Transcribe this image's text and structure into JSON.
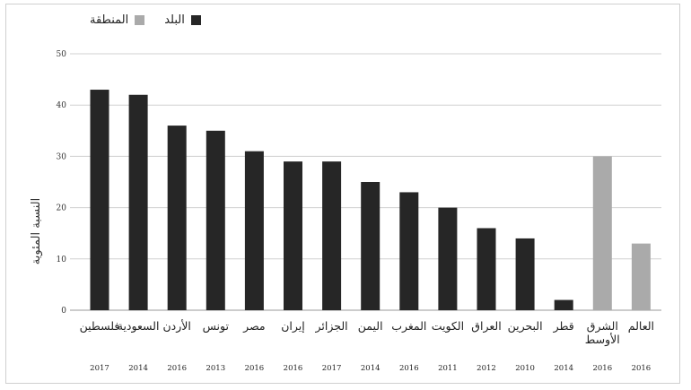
{
  "chart_data": {
    "type": "bar",
    "title": "",
    "ylabel": "النسبة المئوية",
    "xlabel": "",
    "ylim": [
      0,
      50
    ],
    "yticks": [
      0,
      10,
      20,
      30,
      40,
      50
    ],
    "grid": true,
    "legend_position": "top-left",
    "legend": [
      {
        "label": "البلد",
        "color": "#262626"
      },
      {
        "label": "المنطقة",
        "color": "#aaaaaa"
      }
    ],
    "categories": [
      {
        "name": "فلسطين",
        "year": "2017",
        "value": 43,
        "group": "البلد"
      },
      {
        "name": "السعودية",
        "year": "2014",
        "value": 42,
        "group": "البلد"
      },
      {
        "name": "الأردن",
        "year": "2016",
        "value": 36,
        "group": "البلد"
      },
      {
        "name": "تونس",
        "year": "2013",
        "value": 35,
        "group": "البلد"
      },
      {
        "name": "مصر",
        "year": "2016",
        "value": 31,
        "group": "البلد"
      },
      {
        "name": "إيران",
        "year": "2016",
        "value": 29,
        "group": "البلد"
      },
      {
        "name": "الجزائر",
        "year": "2017",
        "value": 29,
        "group": "البلد"
      },
      {
        "name": "اليمن",
        "year": "2014",
        "value": 25,
        "group": "البلد"
      },
      {
        "name": "المغرب",
        "year": "2016",
        "value": 23,
        "group": "البلد"
      },
      {
        "name": "الكويت",
        "year": "2011",
        "value": 20,
        "group": "البلد"
      },
      {
        "name": "العراق",
        "year": "2012",
        "value": 16,
        "group": "البلد"
      },
      {
        "name": "البحرين",
        "year": "2010",
        "value": 14,
        "group": "البلد"
      },
      {
        "name": "قطر",
        "year": "2014",
        "value": 2,
        "group": "البلد"
      },
      {
        "name": "الشرق الأوسط",
        "year": "2016",
        "value": 30,
        "group": "المنطقة"
      },
      {
        "name": "العالم",
        "year": "2016",
        "value": 13,
        "group": "المنطقة"
      }
    ]
  }
}
